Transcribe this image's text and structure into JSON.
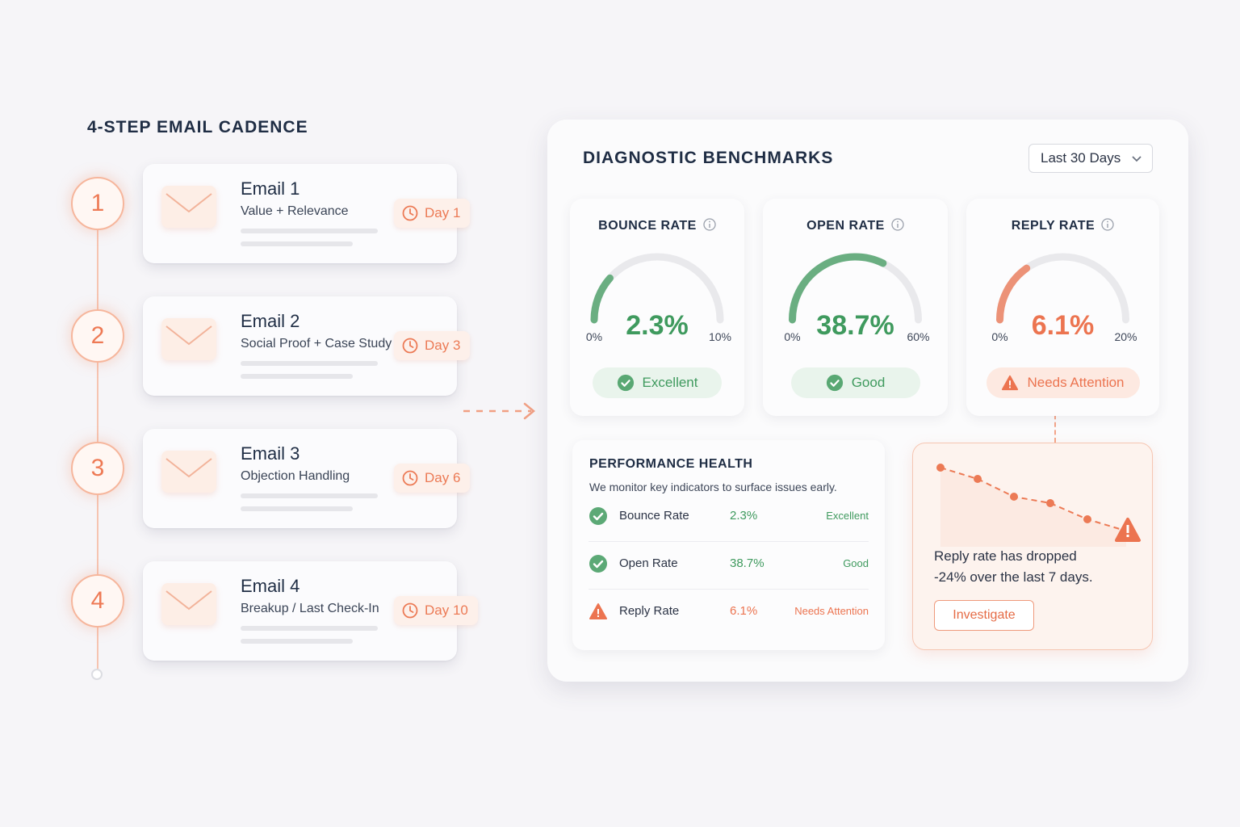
{
  "cadence": {
    "title": "4-STEP EMAIL CADENCE",
    "steps": [
      {
        "number": "1",
        "title": "Email 1",
        "subtitle": "Value + Relevance",
        "day": "Day 1"
      },
      {
        "number": "2",
        "title": "Email 2",
        "subtitle": "Social Proof + Case Study",
        "day": "Day 3"
      },
      {
        "number": "3",
        "title": "Email 3",
        "subtitle": "Objection Handling",
        "day": "Day 6"
      },
      {
        "number": "4",
        "title": "Email 4",
        "subtitle": "Breakup / Last Check-In",
        "day": "Day 10"
      }
    ]
  },
  "benchmarks": {
    "title": "DIAGNOSTIC BENCHMARKS",
    "period": "Last 30 Days",
    "gauges": [
      {
        "label": "BOUNCE RATE",
        "value": 2.3,
        "value_label": "2.3%",
        "min": {
          "value": 0,
          "label": "0%"
        },
        "max": {
          "value": 10,
          "label": "10%"
        },
        "status": "Excellent",
        "icon": "check",
        "color": "#3f9a5e"
      },
      {
        "label": "OPEN RATE",
        "value": 38.7,
        "value_label": "38.7%",
        "min": {
          "value": 0,
          "label": "0%"
        },
        "max": {
          "value": 60,
          "label": "60%"
        },
        "status": "Good",
        "icon": "check",
        "color": "#3f9a5e"
      },
      {
        "label": "REPLY RATE",
        "value": 6.1,
        "value_label": "6.1%",
        "min": {
          "value": 0,
          "label": "0%"
        },
        "max": {
          "value": 20,
          "label": "20%"
        },
        "status": "Needs Attention",
        "icon": "warning",
        "color": "#ec7450"
      }
    ]
  },
  "health": {
    "title": "PERFORMANCE HEALTH",
    "subtitle": "We monitor key indicators to surface issues early.",
    "rows": [
      {
        "metric": "Bounce Rate",
        "value": "2.3%",
        "status": "Excellent",
        "icon": "check",
        "color": "#3f9a5e"
      },
      {
        "metric": "Open Rate",
        "value": "38.7%",
        "status": "Good",
        "icon": "check",
        "color": "#3f9a5e"
      },
      {
        "metric": "Reply Rate",
        "value": "6.1%",
        "status": "Needs Attention",
        "icon": "warning",
        "color": "#ec7450"
      }
    ]
  },
  "alert": {
    "lines": [
      "Reply rate has dropped",
      "-24% over the last 7 days."
    ],
    "button": "Investigate"
  }
}
